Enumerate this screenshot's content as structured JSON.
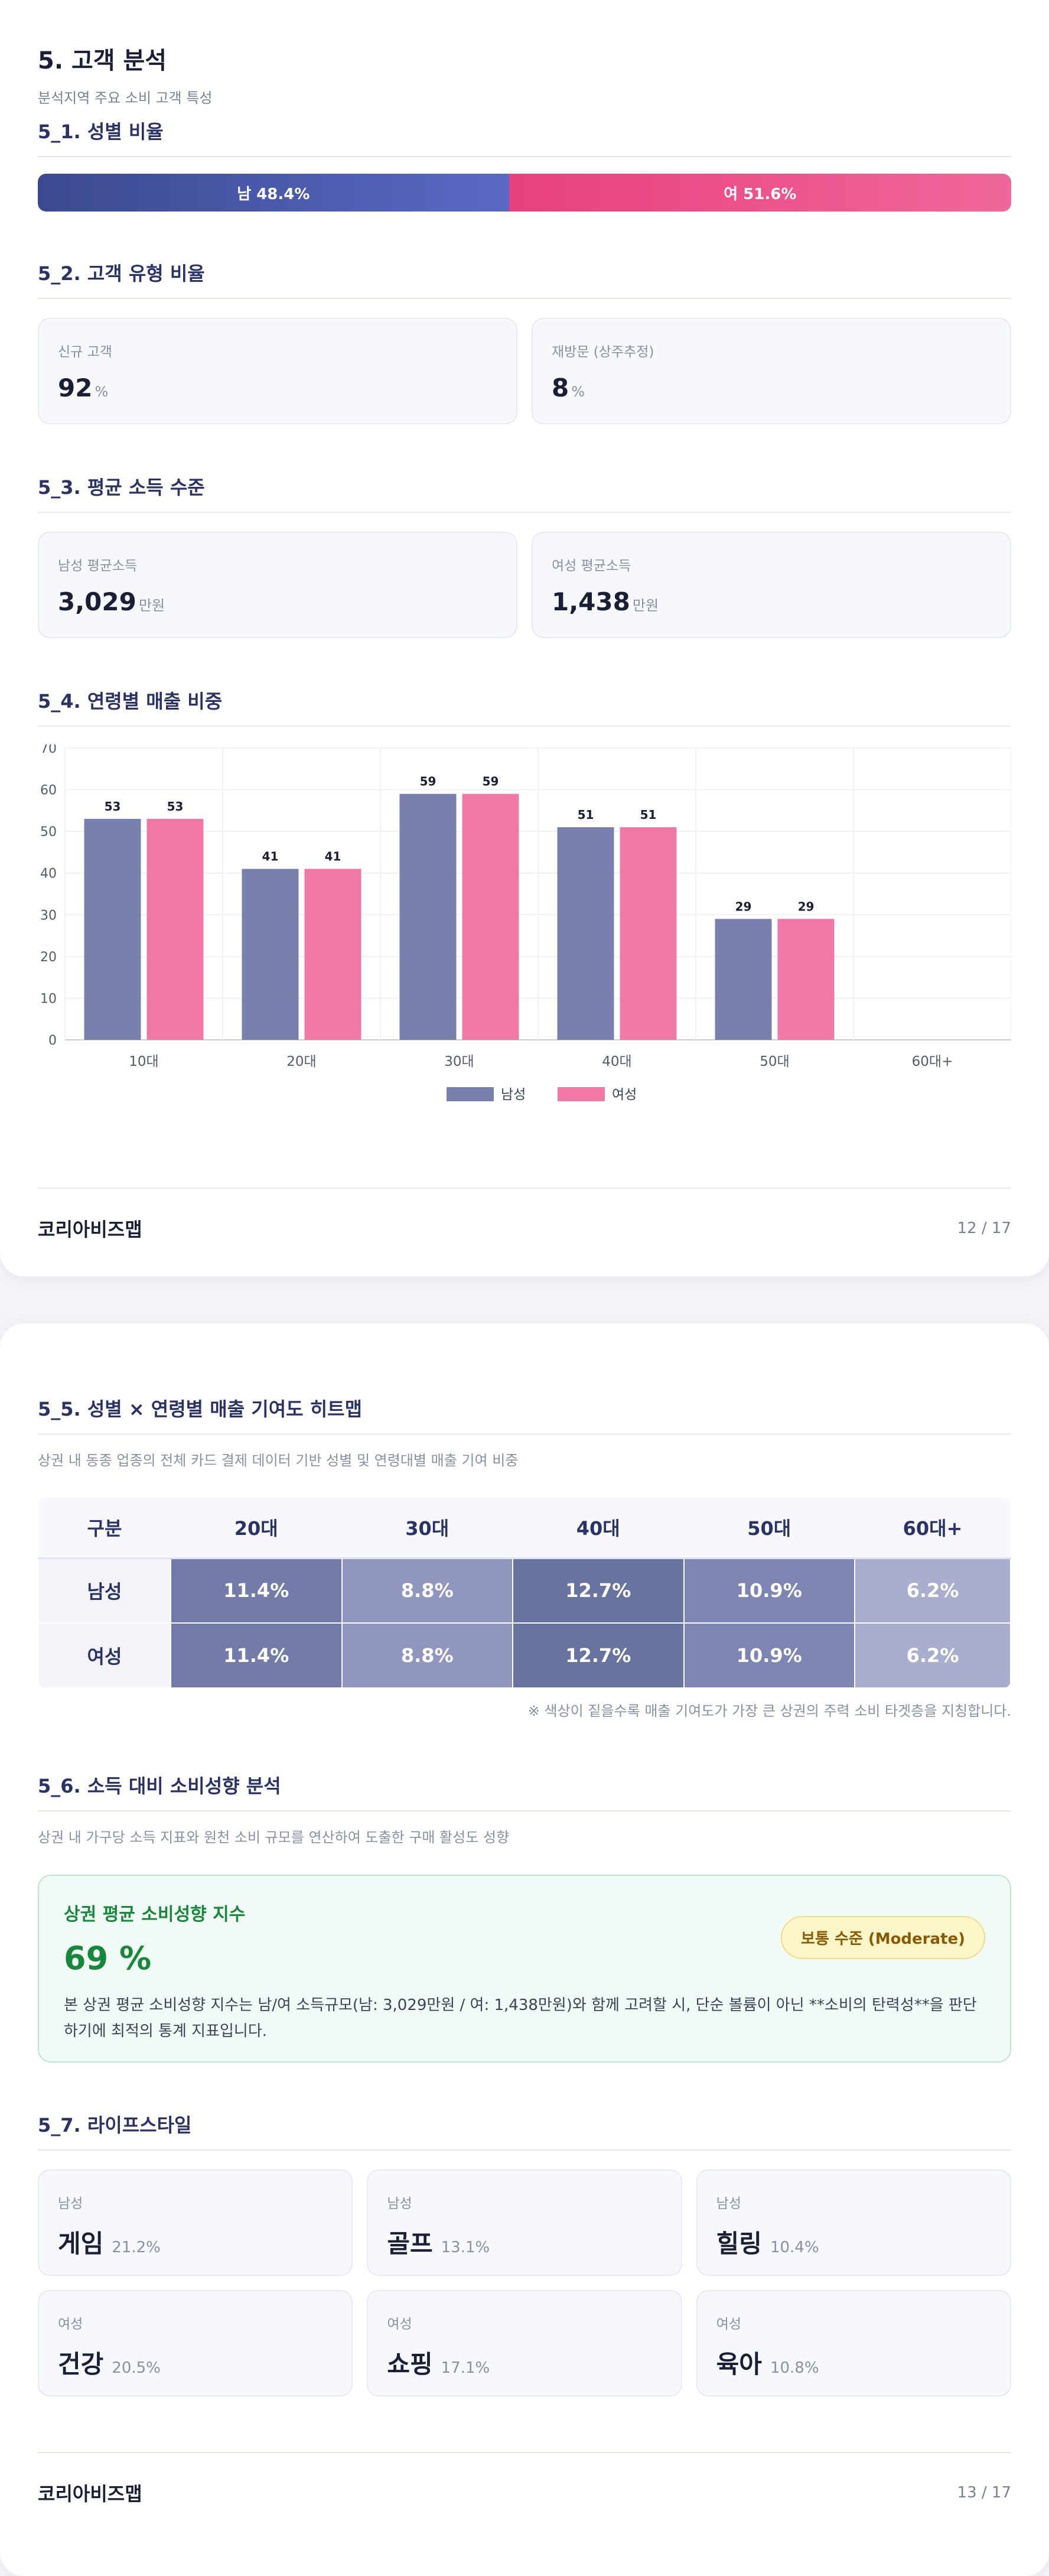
{
  "page1": {
    "title": "5. 고객 분석",
    "subtitle": "분석지역 주요 소비 고객 특성",
    "gender_ratio": {
      "title": "5_1. 성별 비율",
      "male_label": "남 48.4%",
      "female_label": "여 51.6%",
      "male_pct": 48.4,
      "female_pct": 51.6,
      "male_color": "#4553a8",
      "female_color": "#ec4f8b"
    },
    "customer_type": {
      "title": "5_2. 고객 유형 비율",
      "cards": [
        {
          "label": "신규 고객",
          "value": "92",
          "unit": "%"
        },
        {
          "label": "재방문 (상주추정)",
          "value": "8",
          "unit": "%"
        }
      ]
    },
    "income": {
      "title": "5_3. 평균 소득 수준",
      "cards": [
        {
          "label": "남성 평균소득",
          "value": "3,029",
          "unit": "만원"
        },
        {
          "label": "여성 평균소득",
          "value": "1,438",
          "unit": "만원"
        }
      ]
    },
    "age_sales": {
      "title": "5_4. 연령별 매출 비중"
    },
    "footer": {
      "brand": "코리아비즈맵",
      "page": "12 / 17"
    }
  },
  "chart_data": {
    "type": "bar",
    "categories": [
      "10대",
      "20대",
      "30대",
      "40대",
      "50대",
      "60대+"
    ],
    "series": [
      {
        "name": "남성",
        "values": [
          53,
          41,
          59,
          51,
          29,
          null
        ],
        "color": "#7880ad"
      },
      {
        "name": "여성",
        "values": [
          53,
          41,
          59,
          51,
          29,
          null
        ],
        "color": "#ef78a6"
      }
    ],
    "ylim": [
      0,
      70
    ],
    "yticks": [
      0,
      10,
      20,
      30,
      40,
      50,
      60,
      70
    ],
    "grid": true,
    "legend": "bottom-center"
  },
  "page2": {
    "heatmap": {
      "title": "5_5. 성별 × 연령별 매출 기여도 히트맵",
      "desc": "상권 내 동종 업종의 전체 카드 결제 데이터 기반 성별 및 연령대별 매출 기여 비중",
      "header": [
        "구분",
        "20대",
        "30대",
        "40대",
        "50대",
        "60대+"
      ],
      "rows": [
        {
          "label": "남성",
          "cells": [
            "11.4%",
            "8.8%",
            "12.7%",
            "10.9%",
            "6.2%"
          ]
        },
        {
          "label": "여성",
          "cells": [
            "11.4%",
            "8.8%",
            "12.7%",
            "10.9%",
            "6.2%"
          ]
        }
      ],
      "cell_colors": [
        "#737ba9",
        "#9096bd",
        "#69739f",
        "#7d86b2",
        "#aaaecd"
      ],
      "note": "※ 색상이 짙을수록 매출 기여도가 가장 큰 상권의 주력 소비 타겟층을 지칭합니다."
    },
    "spending": {
      "title": "5_6. 소득 대비 소비성향 분석",
      "desc": "상권 내 가구당 소득 지표와 원천 소비 규모를 연산하여 도출한 구매 활성도 성향",
      "card_title": "상권 평균 소비성향 지수",
      "value": "69 %",
      "badge": "보통 수준 (Moderate)",
      "text": "본 상권 평균 소비성향 지수는 남/여 소득규모(남: 3,029만원 / 여: 1,438만원)와 함께 고려할 시, 단순 볼륨이 아닌 **소비의 탄력성**을 판단하기에 최적의 통계 지표입니다."
    },
    "lifestyle": {
      "title": "5_7. 라이프스타일",
      "items": [
        {
          "gender": "남성",
          "name": "게임",
          "pct": "21.2%"
        },
        {
          "gender": "남성",
          "name": "골프",
          "pct": "13.1%"
        },
        {
          "gender": "남성",
          "name": "힐링",
          "pct": "10.4%"
        },
        {
          "gender": "여성",
          "name": "건강",
          "pct": "20.5%"
        },
        {
          "gender": "여성",
          "name": "쇼핑",
          "pct": "17.1%"
        },
        {
          "gender": "여성",
          "name": "육아",
          "pct": "10.8%"
        }
      ]
    },
    "footer": {
      "brand": "코리아비즈맵",
      "page": "13 / 17"
    }
  }
}
